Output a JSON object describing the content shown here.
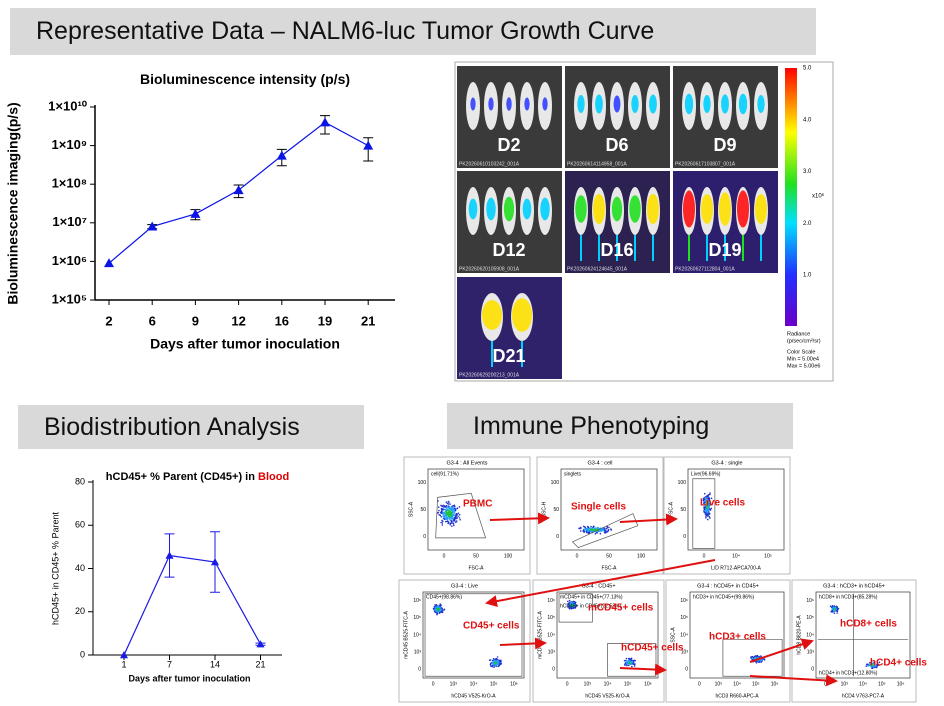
{
  "header": {
    "title": "Representative Data – NALM6-luc Tumor Growth Curve"
  },
  "sections": {
    "biodistribution": "Biodistribution Analysis",
    "immune": "Immune Phenotyping"
  },
  "chart_data": [
    {
      "type": "line",
      "title": "Bioluminescence intensity (p/s)",
      "y_label": "Bioluminescence imaging(p/s)",
      "x_label": "Days after tumor inoculation",
      "categories": [
        "2",
        "6",
        "9",
        "12",
        "16",
        "19",
        "21"
      ],
      "values": [
        900000,
        8000000,
        17000000,
        70000000,
        550000000,
        4000000000,
        1000000000
      ],
      "errors": [
        0,
        1000000,
        5000000,
        25000000,
        250000000,
        2000000000,
        600000000
      ],
      "color": "#0a14e6",
      "log_scale_y": true,
      "ylim": [
        100000,
        10000000000
      ],
      "yticks": [
        {
          "value": 100000,
          "label": "1×10⁵"
        },
        {
          "value": 1000000,
          "label": "1×10⁶"
        },
        {
          "value": 10000000,
          "label": "1×10⁷"
        },
        {
          "value": 100000000,
          "label": "1×10⁸"
        },
        {
          "value": 1000000000,
          "label": "1×10⁹"
        },
        {
          "value": 10000000000,
          "label": "1×10¹⁰"
        }
      ],
      "grid": false
    },
    {
      "type": "line",
      "title": "hCD45+ % Parent (CD45+) in ",
      "title_emphasis": "Blood",
      "y_label": "hCD45+ in CD45+ % Parent",
      "x_label": "Days after tumor inoculation",
      "categories": [
        "1",
        "7",
        "14",
        "21"
      ],
      "values": [
        0,
        46,
        43,
        5
      ],
      "errors": [
        0,
        10,
        14,
        0.5
      ],
      "color": "#1a1ae6",
      "log_scale_y": false,
      "ylim": [
        0,
        80
      ],
      "yticks": [
        0,
        20,
        40,
        60,
        80
      ],
      "grid": false
    }
  ],
  "imaging": {
    "panels": [
      {
        "label": "D2",
        "file": "PK20260610103242_001A"
      },
      {
        "label": "D6",
        "file": "PK20260614114958_001A"
      },
      {
        "label": "D9",
        "file": "PK20260617103807_001A"
      },
      {
        "label": "D12",
        "file": "PK20260620105908_001A"
      },
      {
        "label": "D16",
        "file": "PK20260624124645_001A"
      },
      {
        "label": "D19",
        "file": "PK20260627112804_001A"
      },
      {
        "label": "D21",
        "file": "PK20260629200213_001A"
      }
    ],
    "color_scale": {
      "tick_labels": [
        "5.0",
        "4.0",
        "3.0",
        "2.0",
        "1.0"
      ],
      "unit": "x10⁶",
      "title": [
        "Radiance",
        "(p/sec/cm²/sr)"
      ],
      "notes": [
        "Color Scale",
        "Min = 5.00e4",
        "Max = 5.00e6"
      ]
    }
  },
  "flow": {
    "plots": [
      {
        "title": "G3-4 : All Events",
        "x_label": "FSC-A",
        "y_label": "SSC-A",
        "gate": "cell(91.71%)",
        "annotation": "PBMC",
        "x_ticks": [
          "0",
          "50",
          "100"
        ],
        "y_ticks": [
          "100",
          "50",
          "0"
        ]
      },
      {
        "title": "G3-4 : cell",
        "x_label": "FSC-A",
        "y_label": "SSC-H",
        "gate": "singlets",
        "annotation": "Single cells",
        "x_ticks": [
          "0",
          "50",
          "100"
        ],
        "y_ticks": [
          "100",
          "50",
          "0"
        ]
      },
      {
        "title": "G3-4 : single",
        "x_label": "L/D R712-APCA700-A",
        "y_label": "FSC-A",
        "gate": "Live(96.69%)",
        "annotation": "Live cells",
        "x_ticks": [
          "0",
          "10⁴",
          "10⁵"
        ],
        "y_ticks": [
          "100",
          "50",
          "0"
        ]
      },
      {
        "title": "G3-4 : Live",
        "x_label": "hCD45 V525-KrO-A",
        "y_label": "mCD45 B525-FITC-A",
        "gate": "CD45+(98.86%)",
        "annotation": "CD45+ cells",
        "x_ticks": [
          "0",
          "10³",
          "10⁴",
          "10⁵",
          "10⁶"
        ],
        "y_ticks": [
          "10⁶",
          "10⁵",
          "10⁴",
          "10³",
          "0"
        ]
      },
      {
        "title": "G3-4 : CD45+",
        "x_label": "hCD45 V525-KrO-A",
        "y_label": "mCD45 B525-FITC-A",
        "gate": "mCD45+ in CD45+(77.13%)",
        "gate2": "hCD45+ in CD45+(22.53%)",
        "annotation": "mCD45+ cells",
        "annotation2": "hCD45+ cells",
        "x_ticks": [
          "0",
          "10³",
          "10⁴",
          "10⁵",
          "10⁶"
        ],
        "y_ticks": [
          "10⁶",
          "10⁵",
          "10⁴",
          "10³",
          "0"
        ]
      },
      {
        "title": "G3-4 : hCD45+ in CD45+",
        "x_label": "hCD3 R660-APC-A",
        "y_label": "SSC-A",
        "gate": "hCD3+ in hCD45+(99.86%)",
        "annotation": "hCD3+ cells",
        "x_ticks": [
          "0",
          "10³",
          "10⁴",
          "10⁵",
          "10⁶"
        ],
        "y_ticks": [
          "10⁶",
          "10⁵",
          "10⁴",
          "10³",
          "0"
        ]
      },
      {
        "title": "G3-4 : hCD3+ in hCD45+",
        "x_label": "hCD4 V763-PC7-A",
        "y_label": "hCD8 B820-PE-A",
        "gate": "hCD8+ in hCD3+(85.28%)",
        "gate2": "hCD4+ in hCD3+(12.80%)",
        "annotation": "hCD8+ cells",
        "annotation2": "hCD4+ cells",
        "x_ticks": [
          "0",
          "10³",
          "10⁴",
          "10⁵",
          "10⁶"
        ],
        "y_ticks": [
          "10⁶",
          "10⁵",
          "10⁴",
          "10³",
          "0"
        ]
      }
    ]
  }
}
